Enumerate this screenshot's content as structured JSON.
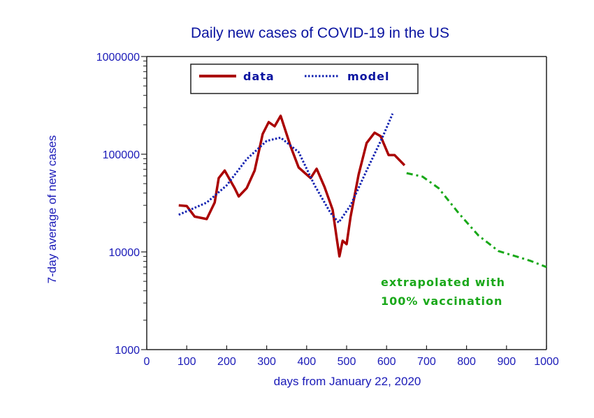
{
  "chart_data": {
    "type": "line",
    "title": "Daily new cases of COVID-19 in the US",
    "xlabel": "days from January 22, 2020",
    "ylabel": "7-day average of new cases",
    "xlim": [
      0,
      1000
    ],
    "ylim": [
      1000,
      1000000
    ],
    "yscale": "log",
    "grid": false,
    "legend_position": "top-left",
    "x_ticks": [
      "0",
      "100",
      "200",
      "300",
      "400",
      "500",
      "600",
      "700",
      "800",
      "900",
      "1000"
    ],
    "x_tick_values": [
      0,
      100,
      200,
      300,
      400,
      500,
      600,
      700,
      800,
      900,
      1000
    ],
    "y_ticks": [
      "1000",
      "10000",
      "100000",
      "1000000"
    ],
    "y_tick_values": [
      1000,
      10000,
      100000,
      1000000
    ],
    "series": [
      {
        "name": "data",
        "style": "solid",
        "color": "#aa0000",
        "x": [
          80,
          100,
          120,
          150,
          170,
          180,
          195,
          220,
          230,
          250,
          270,
          290,
          305,
          320,
          335,
          360,
          380,
          410,
          425,
          445,
          465,
          475,
          482,
          490,
          500,
          510,
          530,
          550,
          570,
          585,
          605,
          620,
          645
        ],
        "y": [
          30000,
          29500,
          23000,
          21700,
          32000,
          57000,
          68000,
          45000,
          37000,
          45000,
          68000,
          161000,
          213000,
          193000,
          247000,
          120000,
          73000,
          57000,
          71000,
          46000,
          27000,
          14000,
          9000,
          13000,
          12000,
          23000,
          62000,
          130000,
          166000,
          153000,
          98000,
          98000,
          77000
        ]
      },
      {
        "name": "model",
        "style": "dotted",
        "color": "#1020b0",
        "x": [
          80,
          150,
          200,
          250,
          300,
          335,
          380,
          420,
          460,
          480,
          510,
          550,
          590,
          615
        ],
        "y": [
          24000,
          32000,
          48000,
          89000,
          137000,
          148000,
          105000,
          48000,
          25000,
          20000,
          30000,
          68000,
          150000,
          260000
        ]
      },
      {
        "name": "extrapolated with 100% vaccination",
        "style": "dashed",
        "color": "#18a818",
        "x": [
          650,
          690,
          730,
          780,
          830,
          880,
          920,
          960,
          1000
        ],
        "y": [
          64000,
          59000,
          45000,
          25000,
          14700,
          10200,
          9100,
          8100,
          7000
        ]
      }
    ],
    "legend": [
      {
        "label": "data",
        "series": 0
      },
      {
        "label": "model",
        "series": 1
      }
    ],
    "annotations": [
      {
        "text_lines": [
          "extrapolated with",
          "100% vaccination"
        ],
        "color": "#18a818",
        "series": 2
      }
    ]
  }
}
